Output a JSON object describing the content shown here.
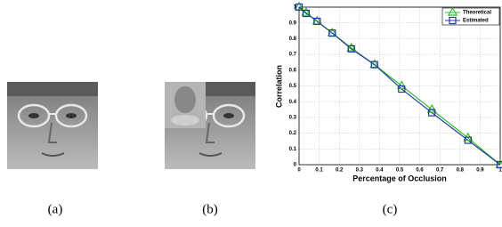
{
  "captions": [
    "(a)",
    "(b)",
    "(c)"
  ],
  "chart_data": {
    "type": "line",
    "xlabel": "Percentage of Occlusion",
    "ylabel": "Correlation",
    "x": [
      0,
      0.035,
      0.09,
      0.165,
      0.26,
      0.375,
      0.51,
      0.66,
      0.84,
      1.0
    ],
    "series": [
      {
        "name": "Theoretical",
        "color": "#33bb33",
        "marker": "triangle",
        "values": [
          1,
          0.965,
          0.91,
          0.835,
          0.74,
          0.635,
          0.5,
          0.35,
          0.17,
          0
        ]
      },
      {
        "name": "Estimated",
        "color": "#1f3c99",
        "marker": "square",
        "values": [
          1,
          0.96,
          0.91,
          0.835,
          0.735,
          0.635,
          0.48,
          0.33,
          0.155,
          0
        ]
      }
    ],
    "xlim": [
      0,
      1
    ],
    "ylim": [
      0,
      1
    ],
    "xticks": [
      0,
      0.1,
      0.2,
      0.3,
      0.4,
      0.5,
      0.6,
      0.7,
      0.8,
      0.9,
      1
    ],
    "yticks": [
      0,
      0.1,
      0.2,
      0.3,
      0.4,
      0.5,
      0.6,
      0.7,
      0.8,
      0.9,
      1
    ],
    "grid": true,
    "legend": "top-right"
  }
}
